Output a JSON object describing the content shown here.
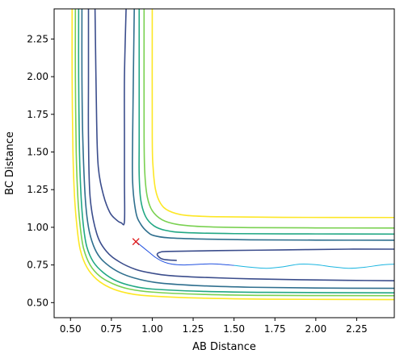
{
  "chart_data": {
    "type": "contour",
    "title": "",
    "xlabel": "AB Distance",
    "ylabel": "BC Distance",
    "xlim": [
      0.4,
      2.48
    ],
    "ylim": [
      0.4,
      2.45
    ],
    "xticks": [
      0.5,
      0.75,
      1.0,
      1.25,
      1.5,
      1.75,
      2.0,
      2.25
    ],
    "xtick_labels": [
      "0.50",
      "0.75",
      "1.00",
      "1.25",
      "1.50",
      "1.75",
      "2.00",
      "2.25"
    ],
    "yticks": [
      0.5,
      0.75,
      1.0,
      1.25,
      1.5,
      1.75,
      2.0,
      2.25
    ],
    "ytick_labels": [
      "0.50",
      "0.75",
      "1.00",
      "1.25",
      "1.50",
      "1.75",
      "2.00",
      "2.25"
    ],
    "grid": false,
    "contours": [
      {
        "color": "#3b4d8c",
        "branches": [
          [
            [
              0.65,
              2.45
            ],
            [
              0.66,
              1.7
            ],
            [
              0.67,
              1.4
            ],
            [
              0.7,
              1.22
            ],
            [
              0.74,
              1.1
            ],
            [
              0.78,
              1.05
            ],
            [
              0.81,
              1.03
            ],
            [
              0.83,
              1.04
            ],
            [
              0.83,
              1.3
            ],
            [
              0.83,
              1.6
            ],
            [
              0.83,
              2.0
            ],
            [
              0.84,
              2.45
            ]
          ],
          [
            [
              2.48,
              0.855
            ],
            [
              2.2,
              0.855
            ],
            [
              1.8,
              0.85
            ],
            [
              1.4,
              0.845
            ],
            [
              1.1,
              0.84
            ],
            [
              1.05,
              0.835
            ],
            [
              1.03,
              0.82
            ],
            [
              1.05,
              0.795
            ],
            [
              1.08,
              0.785
            ],
            [
              1.15,
              0.78
            ]
          ],
          [
            [
              2.48,
              0.645
            ],
            [
              2.2,
              0.648
            ],
            [
              1.9,
              0.652
            ],
            [
              1.6,
              0.658
            ],
            [
              1.3,
              0.668
            ],
            [
              1.1,
              0.68
            ],
            [
              1.0,
              0.695
            ],
            [
              0.9,
              0.72
            ],
            [
              0.8,
              0.77
            ],
            [
              0.72,
              0.84
            ],
            [
              0.66,
              0.96
            ],
            [
              0.62,
              1.2
            ],
            [
              0.61,
              1.6
            ],
            [
              0.61,
              2.0
            ],
            [
              0.61,
              2.45
            ]
          ]
        ]
      },
      {
        "color": "#2f6f8e",
        "branches": [
          [
            [
              0.57,
              2.45
            ],
            [
              0.57,
              2.0
            ],
            [
              0.575,
              1.6
            ],
            [
              0.59,
              1.2
            ],
            [
              0.61,
              1.0
            ],
            [
              0.64,
              0.88
            ],
            [
              0.68,
              0.8
            ],
            [
              0.74,
              0.74
            ],
            [
              0.82,
              0.69
            ],
            [
              0.92,
              0.655
            ],
            [
              1.05,
              0.63
            ],
            [
              1.3,
              0.612
            ],
            [
              1.6,
              0.602
            ],
            [
              2.0,
              0.597
            ],
            [
              2.48,
              0.595
            ]
          ],
          [
            [
              0.89,
              2.45
            ],
            [
              0.88,
              1.6
            ],
            [
              0.88,
              1.3
            ],
            [
              0.9,
              1.1
            ],
            [
              0.93,
              1.02
            ],
            [
              0.97,
              0.97
            ],
            [
              1.01,
              0.945
            ],
            [
              1.1,
              0.93
            ],
            [
              1.3,
              0.922
            ],
            [
              1.6,
              0.917
            ],
            [
              2.0,
              0.915
            ],
            [
              2.48,
              0.914
            ]
          ]
        ]
      },
      {
        "color": "#22a884",
        "branches": [
          [
            [
              0.55,
              2.45
            ],
            [
              0.55,
              2.0
            ],
            [
              0.555,
              1.5
            ],
            [
              0.565,
              1.2
            ],
            [
              0.58,
              1.0
            ],
            [
              0.6,
              0.87
            ],
            [
              0.64,
              0.77
            ],
            [
              0.7,
              0.7
            ],
            [
              0.78,
              0.645
            ],
            [
              0.88,
              0.61
            ],
            [
              1.0,
              0.59
            ],
            [
              1.3,
              0.575
            ],
            [
              1.7,
              0.568
            ],
            [
              2.48,
              0.565
            ]
          ],
          [
            [
              0.92,
              2.45
            ],
            [
              0.92,
              1.6
            ],
            [
              0.92,
              1.35
            ],
            [
              0.93,
              1.18
            ],
            [
              0.96,
              1.07
            ],
            [
              1.01,
              1.01
            ],
            [
              1.08,
              0.98
            ],
            [
              1.2,
              0.965
            ],
            [
              1.5,
              0.958
            ],
            [
              2.0,
              0.956
            ],
            [
              2.48,
              0.955
            ]
          ]
        ]
      },
      {
        "color": "#7ad151",
        "branches": [
          [
            [
              0.53,
              2.45
            ],
            [
              0.53,
              2.0
            ],
            [
              0.535,
              1.5
            ],
            [
              0.545,
              1.2
            ],
            [
              0.56,
              1.0
            ],
            [
              0.58,
              0.86
            ],
            [
              0.62,
              0.75
            ],
            [
              0.68,
              0.675
            ],
            [
              0.76,
              0.625
            ],
            [
              0.86,
              0.59
            ],
            [
              1.0,
              0.57
            ],
            [
              1.3,
              0.555
            ],
            [
              1.7,
              0.548
            ],
            [
              2.48,
              0.546
            ]
          ],
          [
            [
              0.95,
              2.45
            ],
            [
              0.95,
              1.6
            ],
            [
              0.955,
              1.35
            ],
            [
              0.97,
              1.2
            ],
            [
              1.0,
              1.11
            ],
            [
              1.06,
              1.05
            ],
            [
              1.15,
              1.02
            ],
            [
              1.3,
              1.005
            ],
            [
              1.6,
              0.998
            ],
            [
              2.0,
              0.996
            ],
            [
              2.48,
              0.995
            ]
          ]
        ]
      },
      {
        "color": "#fde725",
        "branches": [
          [
            [
              0.51,
              2.45
            ],
            [
              0.51,
              2.0
            ],
            [
              0.515,
              1.5
            ],
            [
              0.525,
              1.2
            ],
            [
              0.54,
              1.0
            ],
            [
              0.56,
              0.85
            ],
            [
              0.6,
              0.735
            ],
            [
              0.66,
              0.655
            ],
            [
              0.74,
              0.6
            ],
            [
              0.84,
              0.565
            ],
            [
              0.98,
              0.545
            ],
            [
              1.3,
              0.53
            ],
            [
              1.7,
              0.523
            ],
            [
              2.48,
              0.52
            ]
          ],
          [
            [
              1.0,
              2.45
            ],
            [
              1.0,
              1.6
            ],
            [
              1.005,
              1.4
            ],
            [
              1.02,
              1.25
            ],
            [
              1.05,
              1.16
            ],
            [
              1.1,
              1.11
            ],
            [
              1.2,
              1.08
            ],
            [
              1.4,
              1.07
            ],
            [
              1.8,
              1.066
            ],
            [
              2.48,
              1.065
            ]
          ]
        ]
      }
    ],
    "trajectory": {
      "color": "#2050e0",
      "points": [
        [
          0.9,
          0.905
        ],
        [
          0.94,
          0.87
        ],
        [
          0.98,
          0.835
        ],
        [
          1.02,
          0.8
        ],
        [
          1.06,
          0.775
        ],
        [
          1.1,
          0.76
        ],
        [
          1.15,
          0.752
        ],
        [
          1.2,
          0.75
        ],
        [
          1.3,
          0.755
        ],
        [
          1.35,
          0.757
        ],
        [
          1.4,
          0.756
        ],
        [
          1.5,
          0.747
        ]
      ]
    },
    "trajectory_tail": {
      "color": "#1ab5e0",
      "points": [
        [
          1.5,
          0.747
        ],
        [
          1.6,
          0.735
        ],
        [
          1.7,
          0.728
        ],
        [
          1.8,
          0.738
        ],
        [
          1.9,
          0.755
        ],
        [
          2.0,
          0.752
        ],
        [
          2.1,
          0.738
        ],
        [
          2.2,
          0.728
        ],
        [
          2.3,
          0.735
        ],
        [
          2.4,
          0.75
        ],
        [
          2.48,
          0.755
        ]
      ]
    },
    "start_marker": {
      "x": 0.9,
      "y": 0.905,
      "symbol": "x",
      "color": "#e01010"
    }
  }
}
